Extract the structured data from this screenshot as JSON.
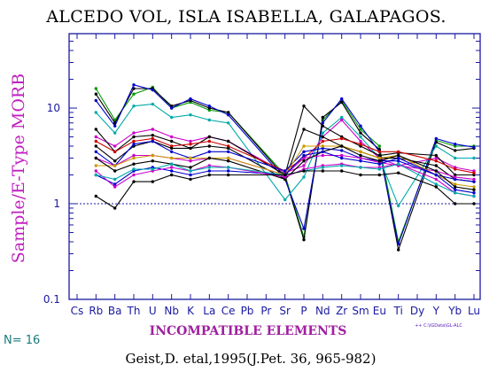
{
  "chart_data": {
    "type": "line",
    "title": "ALCEDO VOL, ISLA ISABELLA, GALAPAGOS.",
    "ylabel": "Sample/E-Type MORB",
    "xlabel": "INCOMPATIBLE ELEMENTS",
    "y_scale": "log",
    "ylim": [
      0.1,
      60
    ],
    "y_ticks": [
      "10",
      "1",
      "0.1"
    ],
    "reference_line": 1,
    "categories": [
      "Cs",
      "Rb",
      "Ba",
      "Th",
      "U",
      "Nb",
      "K",
      "La",
      "Ce",
      "Pb",
      "Pr",
      "Sr",
      "P",
      "Nd",
      "Zr",
      "Sm",
      "Eu",
      "Ti",
      "Dy",
      "Y",
      "Yb",
      "Lu"
    ],
    "series": [
      {
        "color": "#009900",
        "values": [
          null,
          16,
          7.5,
          14,
          16.5,
          10,
          11.5,
          9.5,
          9,
          null,
          null,
          2,
          0.45,
          7.5,
          12,
          6,
          4,
          0.4,
          null,
          4.6,
          4,
          4
        ]
      },
      {
        "color": "#000000",
        "values": [
          null,
          14,
          7,
          16,
          16,
          10.5,
          12,
          10,
          9,
          null,
          null,
          1.9,
          0.42,
          8,
          11.5,
          5.5,
          3.7,
          0.33,
          null,
          4.4,
          3.6,
          3.8
        ]
      },
      {
        "color": "#0000cc",
        "values": [
          null,
          12,
          6.5,
          17.5,
          15.5,
          10,
          12.5,
          10.5,
          8.5,
          null,
          null,
          1.8,
          0.55,
          7,
          12.5,
          6.5,
          3.5,
          0.38,
          null,
          4.8,
          4.2,
          3.9
        ]
      },
      {
        "color": "#00aaaa",
        "values": [
          null,
          9,
          5.5,
          10.5,
          11,
          8,
          8.5,
          7.5,
          7,
          null,
          null,
          1.1,
          1.9,
          5.5,
          8,
          5,
          3,
          0.95,
          null,
          4,
          3,
          3
        ]
      },
      {
        "color": "#cc00cc",
        "values": [
          null,
          5,
          4,
          5.5,
          6,
          5,
          4.5,
          5,
          4.5,
          null,
          null,
          2.1,
          2.5,
          5,
          7.5,
          4.5,
          3,
          2.5,
          null,
          3,
          2.4,
          2.2
        ]
      },
      {
        "color": "#000000",
        "values": [
          null,
          6,
          3.5,
          5,
          5.2,
          4.5,
          3.8,
          5,
          4.5,
          null,
          null,
          2,
          10.5,
          6.5,
          5,
          4,
          3.2,
          3.4,
          null,
          3.2,
          2,
          2
        ]
      },
      {
        "color": "#cc0000",
        "values": [
          null,
          4.5,
          3.5,
          4.5,
          4.8,
          4,
          4.2,
          4.5,
          4,
          null,
          null,
          2.2,
          3,
          4.5,
          4.8,
          4.2,
          3.5,
          3.5,
          null,
          2.8,
          2.3,
          2.1
        ]
      },
      {
        "color": "#000000",
        "values": [
          null,
          4,
          2.8,
          4,
          4.5,
          3.8,
          3.8,
          4,
          3.8,
          null,
          null,
          1.8,
          6,
          5,
          4,
          3.5,
          3,
          3,
          null,
          2.5,
          1.8,
          1.7
        ]
      },
      {
        "color": "#0000cc",
        "values": [
          null,
          3.5,
          2.5,
          4.2,
          4.5,
          3.5,
          3,
          3.5,
          3.5,
          null,
          null,
          2.2,
          3.5,
          3.8,
          3.6,
          3,
          2.8,
          2.8,
          null,
          2,
          1.8,
          1.7
        ]
      },
      {
        "color": "#cc00cc",
        "values": [
          null,
          3,
          2.5,
          3.2,
          3.2,
          3,
          2.8,
          3,
          3,
          null,
          null,
          2,
          3,
          3.2,
          3.2,
          3,
          2.7,
          2.5,
          null,
          2.2,
          1.9,
          1.8
        ]
      },
      {
        "color": "#cc9900",
        "values": [
          null,
          2.5,
          2.5,
          3,
          3.2,
          3,
          3,
          3,
          3,
          null,
          null,
          2,
          4,
          4,
          4,
          3.5,
          3,
          3.2,
          null,
          2,
          1.6,
          1.5
        ]
      },
      {
        "color": "#000000",
        "values": [
          null,
          3,
          2.2,
          2.6,
          2.8,
          2.6,
          2.4,
          3,
          2.8,
          null,
          null,
          1.8,
          2.8,
          3.5,
          4,
          3.2,
          2.8,
          3.2,
          null,
          2.2,
          1.5,
          1.4
        ]
      },
      {
        "color": "#0000cc",
        "values": [
          null,
          2,
          1.6,
          2.2,
          2.4,
          2.2,
          2,
          2.2,
          2.2,
          null,
          null,
          2,
          3.2,
          3.5,
          3,
          2.8,
          2.6,
          3,
          null,
          2,
          1.4,
          1.3
        ]
      },
      {
        "color": "#cc00cc",
        "values": [
          null,
          2.2,
          1.5,
          2,
          2.2,
          2.4,
          2.2,
          2.5,
          2.4,
          null,
          null,
          1.9,
          2.3,
          2.5,
          2.6,
          2.4,
          2.4,
          2.6,
          null,
          1.8,
          1.3,
          1.2
        ]
      },
      {
        "color": "#00aaaa",
        "values": [
          null,
          2,
          1.8,
          2.3,
          2.3,
          2.6,
          2.2,
          2.4,
          2.4,
          null,
          null,
          2,
          2.2,
          2.4,
          2.5,
          2.4,
          2.3,
          2.6,
          null,
          1.6,
          1.3,
          1.2
        ]
      },
      {
        "color": "#000000",
        "values": [
          null,
          1.2,
          0.9,
          1.7,
          1.7,
          2,
          1.8,
          2,
          2,
          null,
          null,
          2,
          2.2,
          2.2,
          2.2,
          2,
          2,
          2.1,
          null,
          1.5,
          1,
          1
        ]
      }
    ]
  },
  "footer": {
    "n_label": "N= 16",
    "citation": "Geist,D. etal,1995(J.Pet. 36, 965-982)",
    "file_label": "++ C:\\IGData\\GL-ALC"
  }
}
